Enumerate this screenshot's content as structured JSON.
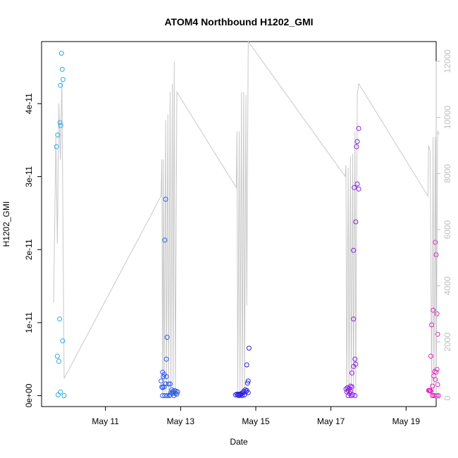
{
  "chart_data": {
    "type": "scatter",
    "title": "ATOM4 Northbound H1202_GMI",
    "xlabel": "Date",
    "ylabel": "H1202_GMI",
    "xlim": [
      9.3,
      19.8
    ],
    "ylim": [
      -1.5e-12,
      4.85e-11
    ],
    "y2lim": [
      -300,
      12700
    ],
    "x_tick_labels": [
      "May 11",
      "May 13",
      "May 15",
      "May 17",
      "May 19"
    ],
    "x_tick_values": [
      11,
      13,
      15,
      17,
      19
    ],
    "y_tick_labels": [
      "0e+00",
      "1e-11",
      "2e-11",
      "3e-11",
      "4e-11"
    ],
    "y_tick_values": [
      0,
      1e-11,
      2e-11,
      3e-11,
      4e-11
    ],
    "y2_tick_labels": [
      "0",
      "2000",
      "4000",
      "6000",
      "8000",
      "10000",
      "12000"
    ],
    "y2_tick_values": [
      0,
      2000,
      4000,
      6000,
      8000,
      10000,
      12000
    ],
    "secondary_line": {
      "color": "#c8c8c8",
      "points": [
        [
          9.62,
          3400
        ],
        [
          9.68,
          9300
        ],
        [
          9.72,
          5500
        ],
        [
          9.76,
          10500
        ],
        [
          9.8,
          8500
        ],
        [
          9.84,
          11300
        ],
        [
          9.9,
          700
        ],
        [
          12.48,
          7200
        ],
        [
          12.5,
          8500
        ],
        [
          12.52,
          100
        ],
        [
          12.54,
          8500
        ],
        [
          12.56,
          100
        ],
        [
          12.6,
          9900
        ],
        [
          12.62,
          100
        ],
        [
          12.66,
          10100
        ],
        [
          12.68,
          100
        ],
        [
          12.72,
          10900
        ],
        [
          12.74,
          100
        ],
        [
          12.78,
          11200
        ],
        [
          12.8,
          100
        ],
        [
          12.83,
          12000
        ],
        [
          12.86,
          100
        ],
        [
          12.9,
          10900
        ],
        [
          14.48,
          7500
        ],
        [
          14.5,
          9500
        ],
        [
          14.52,
          100
        ],
        [
          14.56,
          9500
        ],
        [
          14.58,
          100
        ],
        [
          14.62,
          10900
        ],
        [
          14.64,
          100
        ],
        [
          14.68,
          10900
        ],
        [
          14.7,
          100
        ],
        [
          14.74,
          10800
        ],
        [
          14.76,
          3300
        ],
        [
          14.8,
          12700
        ],
        [
          17.38,
          7900
        ],
        [
          17.4,
          8300
        ],
        [
          17.42,
          100
        ],
        [
          17.46,
          8200
        ],
        [
          17.48,
          100
        ],
        [
          17.52,
          8600
        ],
        [
          17.54,
          100
        ],
        [
          17.58,
          8700
        ],
        [
          17.6,
          100
        ],
        [
          17.64,
          9500
        ],
        [
          17.66,
          100
        ],
        [
          17.7,
          10800
        ],
        [
          17.74,
          11200
        ],
        [
          19.58,
          7200
        ],
        [
          19.6,
          9000
        ],
        [
          19.64,
          8800
        ],
        [
          19.68,
          100
        ],
        [
          19.72,
          9300
        ],
        [
          19.74,
          100
        ],
        [
          19.78,
          9300
        ],
        [
          19.8,
          100
        ],
        [
          19.84,
          9500
        ],
        [
          19.88,
          9400
        ]
      ]
    },
    "series": [
      {
        "color": "#29a8e8",
        "points": [
          [
            9.83,
            4.69e-11
          ],
          [
            9.85,
            4.47e-11
          ],
          [
            9.87,
            4.33e-11
          ],
          [
            9.8,
            4.25e-11
          ],
          [
            9.79,
            3.74e-11
          ],
          [
            9.81,
            3.7e-11
          ],
          [
            9.73,
            3.57e-11
          ],
          [
            9.7,
            3.41e-11
          ],
          [
            9.78,
            1.05e-11
          ],
          [
            9.86,
            7.5e-12
          ],
          [
            9.72,
            5.4e-12
          ],
          [
            9.76,
            4.7e-12
          ],
          [
            9.74,
            1e-13
          ],
          [
            9.8,
            5e-13
          ],
          [
            9.9,
            0
          ]
        ]
      },
      {
        "color": "#2b5ae8",
        "points": [
          [
            12.6,
            2.69e-11
          ],
          [
            12.58,
            2.13e-11
          ],
          [
            12.64,
            8e-12
          ],
          [
            12.62,
            5e-12
          ],
          [
            12.52,
            3.2e-12
          ],
          [
            12.56,
            2.9e-12
          ],
          [
            12.54,
            2.6e-12
          ],
          [
            12.62,
            2.6e-12
          ],
          [
            12.48,
            2e-12
          ],
          [
            12.6,
            1.6e-12
          ],
          [
            12.68,
            1.6e-12
          ],
          [
            12.72,
            1.6e-12
          ],
          [
            12.5,
            1.2e-12
          ],
          [
            12.56,
            1.2e-12
          ],
          [
            12.52,
            1.1e-12
          ],
          [
            12.76,
            8e-13
          ],
          [
            12.84,
            7e-13
          ],
          [
            12.8,
            6e-13
          ],
          [
            12.88,
            6e-13
          ],
          [
            12.92,
            5e-13
          ],
          [
            12.74,
            4e-13
          ],
          [
            12.78,
            3e-13
          ],
          [
            12.86,
            3e-13
          ],
          [
            12.9,
            2e-13
          ],
          [
            12.72,
            1e-13
          ],
          [
            12.82,
            0
          ],
          [
            12.52,
            0
          ],
          [
            12.58,
            0
          ],
          [
            12.64,
            0
          ],
          [
            12.7,
            0
          ]
        ]
      },
      {
        "color": "#2a1ee0",
        "points": [
          [
            14.82,
            6.5e-12
          ],
          [
            14.76,
            4.2e-12
          ],
          [
            14.8,
            2e-12
          ],
          [
            14.78,
            1.7e-12
          ],
          [
            14.72,
            8e-13
          ],
          [
            14.76,
            7e-13
          ],
          [
            14.68,
            6e-13
          ],
          [
            14.74,
            5e-13
          ],
          [
            14.66,
            4e-13
          ],
          [
            14.8,
            4e-13
          ],
          [
            14.62,
            3e-13
          ],
          [
            14.5,
            2e-13
          ],
          [
            14.54,
            2e-13
          ],
          [
            14.58,
            2e-13
          ],
          [
            14.46,
            1e-13
          ],
          [
            14.6,
            1e-13
          ],
          [
            14.7,
            1e-13
          ],
          [
            14.52,
            5e-14
          ],
          [
            14.64,
            0
          ],
          [
            14.56,
            0
          ]
        ]
      },
      {
        "color": "#8a1ee0",
        "points": [
          [
            17.74,
            3.66e-11
          ],
          [
            17.7,
            3.48e-11
          ],
          [
            17.68,
            3.41e-11
          ],
          [
            17.62,
            2.85e-11
          ],
          [
            17.7,
            2.9e-11
          ],
          [
            17.74,
            2.83e-11
          ],
          [
            17.66,
            2.38e-11
          ],
          [
            17.6,
            1.99e-11
          ],
          [
            17.6,
            1.05e-11
          ],
          [
            17.64,
            5e-12
          ],
          [
            17.6,
            4e-12
          ],
          [
            17.66,
            4.3e-12
          ],
          [
            17.56,
            3.1e-12
          ],
          [
            17.52,
            1.3e-12
          ],
          [
            17.56,
            1.2e-12
          ],
          [
            17.44,
            1.1e-12
          ],
          [
            17.48,
            1e-12
          ],
          [
            17.4,
            9e-13
          ],
          [
            17.46,
            7e-13
          ],
          [
            17.52,
            6e-13
          ],
          [
            17.42,
            5e-13
          ],
          [
            17.5,
            3e-13
          ],
          [
            17.58,
            1e-13
          ],
          [
            17.64,
            0
          ],
          [
            17.46,
            0
          ],
          [
            17.54,
            0
          ]
        ]
      },
      {
        "color": "#e020c0",
        "points": [
          [
            19.78,
            2.1e-11
          ],
          [
            19.8,
            1.93e-11
          ],
          [
            19.72,
            1.17e-11
          ],
          [
            19.82,
            1.12e-11
          ],
          [
            19.68,
            9.7e-12
          ],
          [
            19.84,
            8.4e-12
          ],
          [
            19.66,
            5.4e-12
          ],
          [
            19.82,
            3.6e-12
          ],
          [
            19.76,
            3.3e-12
          ],
          [
            19.8,
            3.2e-12
          ],
          [
            19.74,
            2.7e-12
          ],
          [
            19.78,
            2.2e-12
          ],
          [
            19.84,
            1.5e-12
          ],
          [
            19.7,
            1.3e-12
          ],
          [
            19.64,
            7e-13
          ],
          [
            19.6,
            7e-13
          ],
          [
            19.62,
            7e-13
          ],
          [
            19.66,
            6e-13
          ],
          [
            19.7,
            0
          ],
          [
            19.74,
            0
          ],
          [
            19.78,
            0
          ],
          [
            19.82,
            0
          ],
          [
            19.86,
            0
          ]
        ]
      }
    ]
  }
}
